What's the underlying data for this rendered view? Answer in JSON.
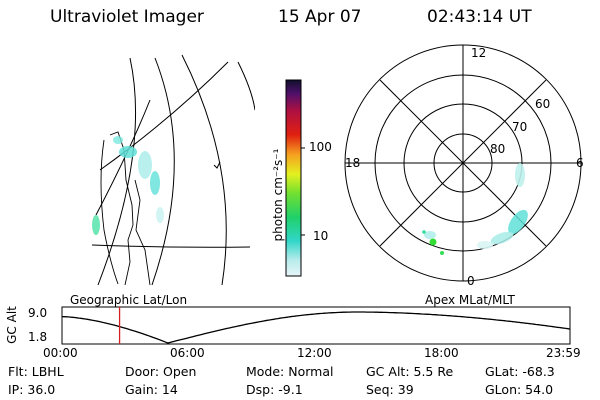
{
  "header": {
    "title": "Ultraviolet Imager",
    "date": "15 Apr 07",
    "time": "02:43:14 UT"
  },
  "colorbar": {
    "unit_label": "photon cm⁻²s⁻¹",
    "ticks": [
      "100",
      "10"
    ]
  },
  "polar_plot": {
    "mlt_labels": {
      "top": "12",
      "left": "18",
      "right": "6",
      "bottom": "0"
    },
    "lat_labels": [
      "60",
      "70",
      "80"
    ],
    "title": "Apex MLat/MLT"
  },
  "geo_plot": {
    "title": "Geographic Lat/Lon"
  },
  "timeline": {
    "axis_label": "GC Alt",
    "y_ticks": [
      "9.0",
      "1.8"
    ],
    "x_ticks": [
      "00:00",
      "06:00",
      "12:00",
      "18:00",
      "23:59"
    ],
    "current_time_hours": 2.72
  },
  "info": {
    "flt": "Flt: LBHL",
    "ip": "IP: 36.0",
    "door": "Door: Open",
    "gain": "Gain: 14",
    "mode": "Mode: Normal",
    "dsp": "Dsp:    -9.1",
    "gc_alt": "GC Alt: 5.5 Re",
    "seq": "Seq: 39",
    "glat": "GLat: -68.3",
    "glon": "GLon:  54.0"
  },
  "colors": {
    "marker": "#d42020",
    "aurora_cyan": "#5fe0d8",
    "aurora_green": "#33dd33"
  }
}
